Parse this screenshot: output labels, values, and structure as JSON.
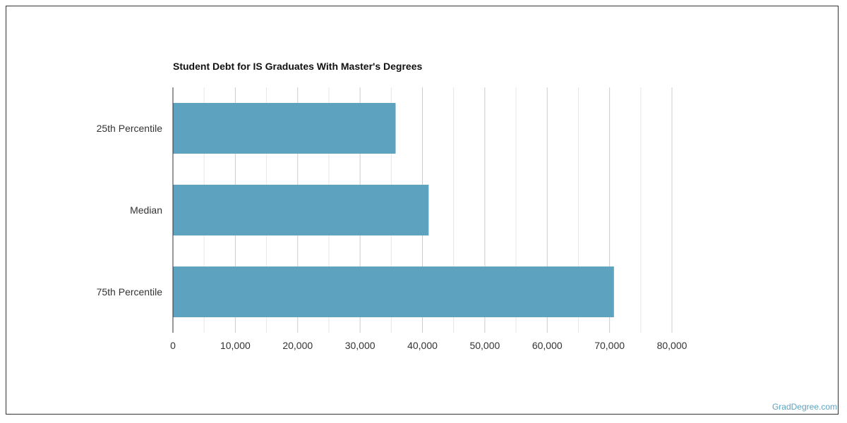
{
  "chart_data": {
    "type": "bar",
    "orientation": "horizontal",
    "title": "Student Debt for IS Graduates With Master's Degrees",
    "categories": [
      "25th Percentile",
      "Median",
      "75th Percentile"
    ],
    "values": [
      35700,
      41000,
      70700
    ],
    "xlim": [
      0,
      80000
    ],
    "xticks": [
      0,
      10000,
      20000,
      30000,
      40000,
      50000,
      60000,
      70000,
      80000
    ],
    "xtick_labels": [
      "0",
      "10,000",
      "20,000",
      "30,000",
      "40,000",
      "50,000",
      "60,000",
      "70,000",
      "80,000"
    ],
    "grid": true,
    "bar_color": "#5da2bf"
  },
  "watermark": "GradDegree.com"
}
